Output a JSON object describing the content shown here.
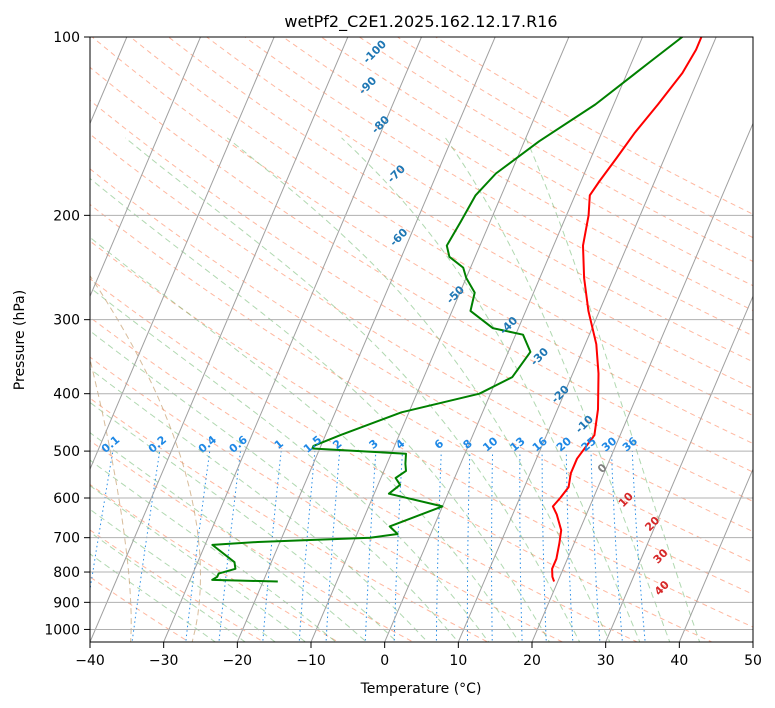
{
  "chart_data": {
    "type": "line",
    "title": "wetPf2_C2E1.2025.162.12.17.R16",
    "xlabel": "Temperature (°C)",
    "ylabel": "Pressure (hPa)",
    "xlim": [
      -40,
      50
    ],
    "ylim": [
      1050,
      100
    ],
    "y_scale": "log",
    "x_ticks": [
      -40,
      -30,
      -20,
      -10,
      0,
      10,
      20,
      30,
      40,
      50
    ],
    "y_ticks": [
      100,
      200,
      300,
      400,
      500,
      600,
      700,
      800,
      900,
      1000
    ],
    "grid": true,
    "isotherm_skew": 35,
    "colors": {
      "temperature": "#ff0000",
      "dewpoint": "#008000",
      "isotherms": "#a0a0a0",
      "dry_adiabats": "#ff9f7f",
      "moist_adiabats": "#6fb86f",
      "mixing_ratio": "#1e88e5",
      "blue_labels": "#1f77b4",
      "red_labels": "#d62728",
      "thetae": "#c8a070"
    },
    "series": [
      {
        "key": "temperature",
        "x": [
          19.5,
          19.0,
          18.5,
          18.5,
          18.0,
          17.5,
          16.0,
          15.0,
          15.5,
          16.0,
          15.5,
          15.5,
          16.5,
          15.5,
          13.5,
          11.5,
          8.5,
          6.0,
          4.0,
          3.0,
          2.0,
          2.5,
          3.5,
          4.5,
          6.0,
          7.5,
          8.0,
          8.0,
          7.5
        ],
        "y": [
          830,
          815,
          790,
          760,
          715,
          680,
          640,
          620,
          600,
          575,
          545,
          515,
          470,
          425,
          370,
          330,
          290,
          255,
          225,
          200,
          185,
          175,
          160,
          145,
          130,
          115,
          105,
          100,
          98
        ]
      },
      {
        "key": "dewpoint",
        "x": [
          -18.0,
          -27.0,
          -26.5,
          -26.5,
          -24.5,
          -25.0,
          -29.0,
          -23.0,
          -8.0,
          -4.5,
          -6.0,
          0.0,
          -8.0,
          -7.0,
          -8.0,
          -7.0,
          -7.5,
          -8.0,
          -21.0,
          -21.0,
          -18.0,
          -11.0,
          -1.5,
          2.0,
          3.0,
          1.0,
          -3.5,
          -7.5,
          -8.0,
          -10.0,
          -11.0,
          -13.5,
          -14.5,
          -14.0,
          -13.5,
          -12.0,
          -8.0,
          -2.5,
          2.5,
          6.0
        ],
        "y": [
          830,
          825,
          815,
          805,
          790,
          770,
          720,
          712,
          700,
          690,
          670,
          620,
          590,
          570,
          555,
          540,
          525,
          505,
          495,
          490,
          470,
          430,
          400,
          375,
          340,
          318,
          310,
          290,
          270,
          255,
          245,
          235,
          225,
          205,
          185,
          170,
          150,
          130,
          110,
          98
        ]
      }
    ],
    "mixing_ratio_labels": [
      "0.1",
      "0.2",
      "0.4",
      "0.6",
      "1",
      "1.5",
      "2",
      "3",
      "4",
      "6",
      "8",
      "10",
      "13",
      "16",
      "20",
      "25",
      "30",
      "36"
    ],
    "blue_adiabat_labels": [
      "-100",
      "-90",
      "-80",
      "-70",
      "-60",
      "-50",
      "-40",
      "-30",
      "-20",
      "-10"
    ],
    "red_adiabat_labels": [
      "0",
      "10",
      "20",
      "30",
      "40"
    ]
  }
}
